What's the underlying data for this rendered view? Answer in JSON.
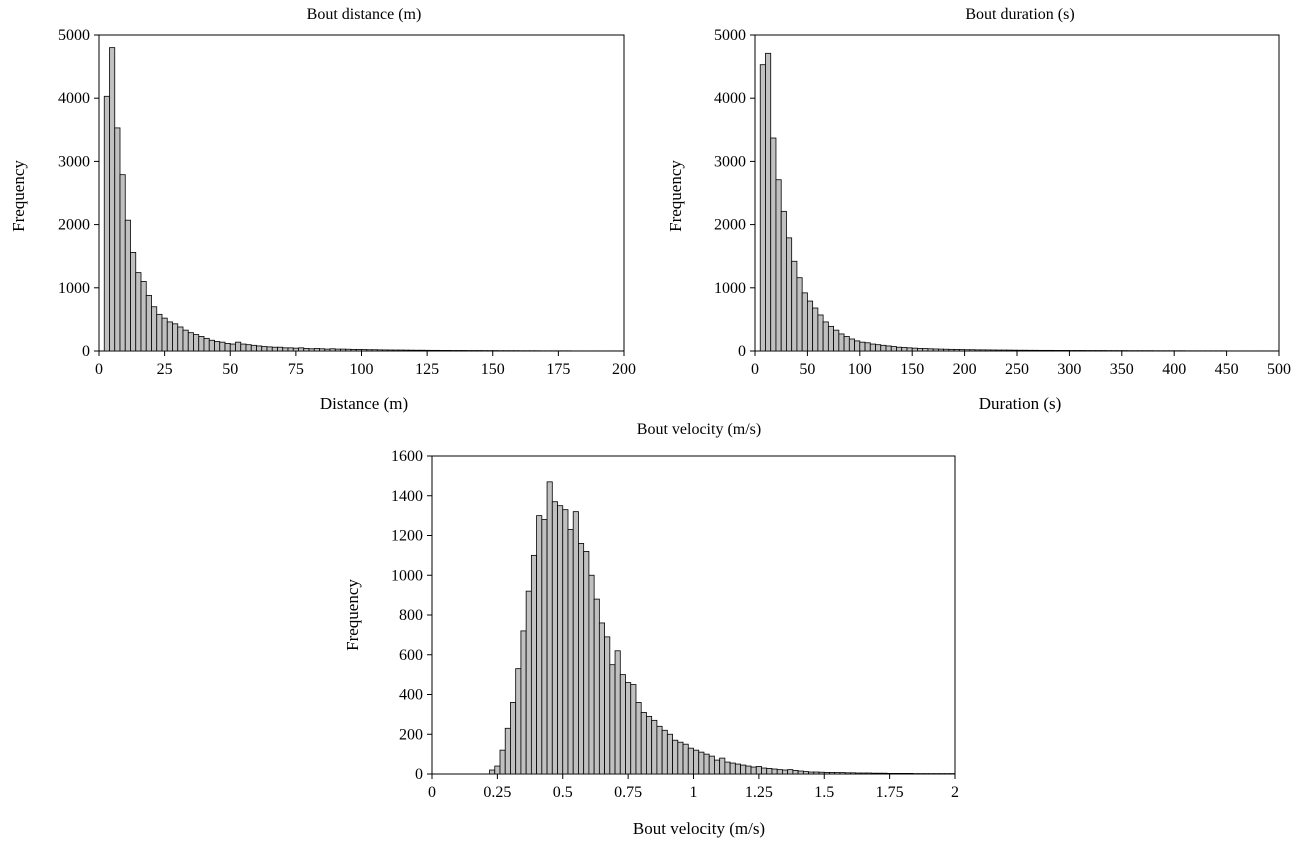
{
  "chart_data": [
    {
      "type": "bar",
      "title": "Bout distance (m)",
      "xlabel": "Distance (m)",
      "ylabel": "Frequency",
      "xlim": [
        0,
        200
      ],
      "ylim": [
        0,
        5000
      ],
      "xticks": [
        "0",
        "25",
        "50",
        "75",
        "100",
        "125",
        "150",
        "175",
        "200"
      ],
      "yticks": [
        "0",
        "1000",
        "2000",
        "3000",
        "4000",
        "5000"
      ],
      "bin_start": 2,
      "bin_width": 2,
      "values": [
        4030,
        4800,
        3530,
        2790,
        2070,
        1560,
        1240,
        1100,
        880,
        700,
        580,
        520,
        460,
        430,
        380,
        330,
        290,
        260,
        230,
        200,
        170,
        150,
        140,
        120,
        110,
        140,
        110,
        100,
        90,
        80,
        70,
        65,
        60,
        60,
        50,
        50,
        45,
        50,
        40,
        35,
        40,
        35,
        30,
        35,
        30,
        30,
        28,
        25,
        25,
        22,
        20,
        20,
        18,
        17,
        16,
        15,
        15,
        14,
        13,
        12,
        12,
        11,
        10,
        10,
        9,
        9,
        8,
        8,
        8,
        7,
        7,
        7,
        6,
        6,
        6,
        5,
        5,
        5,
        5,
        4,
        4,
        4,
        4,
        3,
        3,
        3,
        3,
        3,
        3,
        2,
        2,
        2,
        2,
        2,
        2,
        2,
        2,
        2,
        2
      ],
      "grid": false,
      "legend": "none"
    },
    {
      "type": "bar",
      "title": "Bout duration (s)",
      "xlabel": "Duration (s)",
      "ylabel": "Frequency",
      "xlim": [
        0,
        500
      ],
      "ylim": [
        0,
        5000
      ],
      "xticks": [
        "0",
        "50",
        "100",
        "150",
        "200",
        "250",
        "300",
        "350",
        "400",
        "450",
        "500"
      ],
      "yticks": [
        "0",
        "1000",
        "2000",
        "3000",
        "4000",
        "5000"
      ],
      "bin_start": 5,
      "bin_width": 5,
      "values": [
        4530,
        4710,
        3370,
        2710,
        2210,
        1790,
        1420,
        1160,
        920,
        790,
        680,
        570,
        460,
        390,
        330,
        270,
        230,
        190,
        160,
        140,
        130,
        110,
        100,
        90,
        80,
        70,
        60,
        55,
        50,
        45,
        40,
        38,
        35,
        32,
        30,
        28,
        26,
        24,
        22,
        20,
        20,
        18,
        18,
        17,
        16,
        15,
        15,
        14,
        13,
        12,
        12,
        11,
        11,
        10,
        10,
        10,
        9,
        9,
        9,
        8,
        8,
        8,
        7,
        7,
        7,
        7,
        6,
        6,
        6,
        6,
        5,
        5,
        5,
        5,
        5,
        4,
        4,
        4,
        4,
        4,
        4,
        3,
        3,
        3,
        3,
        3,
        3,
        3,
        3,
        2,
        2,
        2,
        2,
        2,
        2,
        2,
        2,
        2,
        2
      ],
      "grid": false,
      "legend": "none"
    },
    {
      "type": "bar",
      "title": "Bout velocity (m/s)",
      "xlabel": "Bout velocity (m/s)",
      "ylabel": "Frequency",
      "xlim": [
        0,
        2
      ],
      "ylim": [
        0,
        1600
      ],
      "xticks": [
        "0",
        "0.25",
        "0.5",
        "0.75",
        "1",
        "1.25",
        "1.5",
        "1.75",
        "2"
      ],
      "yticks": [
        "0",
        "200",
        "400",
        "600",
        "800",
        "1000",
        "1200",
        "1400",
        "1600"
      ],
      "bin_start": 0.02,
      "bin_width": 0.02,
      "values": [
        0,
        0,
        0,
        0,
        0,
        0,
        0,
        0,
        0,
        0,
        20,
        40,
        120,
        230,
        360,
        530,
        720,
        920,
        1100,
        1300,
        1280,
        1470,
        1370,
        1350,
        1330,
        1230,
        1320,
        1160,
        1120,
        1000,
        880,
        760,
        690,
        550,
        620,
        500,
        460,
        450,
        360,
        310,
        290,
        270,
        240,
        220,
        200,
        170,
        160,
        150,
        130,
        120,
        110,
        100,
        90,
        70,
        80,
        60,
        55,
        50,
        45,
        40,
        35,
        38,
        30,
        28,
        25,
        22,
        20,
        22,
        18,
        15,
        12,
        10,
        10,
        9,
        8,
        8,
        7,
        7,
        6,
        6,
        5,
        5,
        5,
        4,
        4,
        4,
        3,
        3,
        3,
        3,
        3,
        2,
        2,
        2,
        2,
        2,
        2,
        2,
        2,
        2
      ],
      "grid": false,
      "legend": "none"
    }
  ],
  "colors": {
    "bar_fill": "#c0c0c0",
    "bar_stroke": "#000000",
    "axis": "#000000"
  }
}
